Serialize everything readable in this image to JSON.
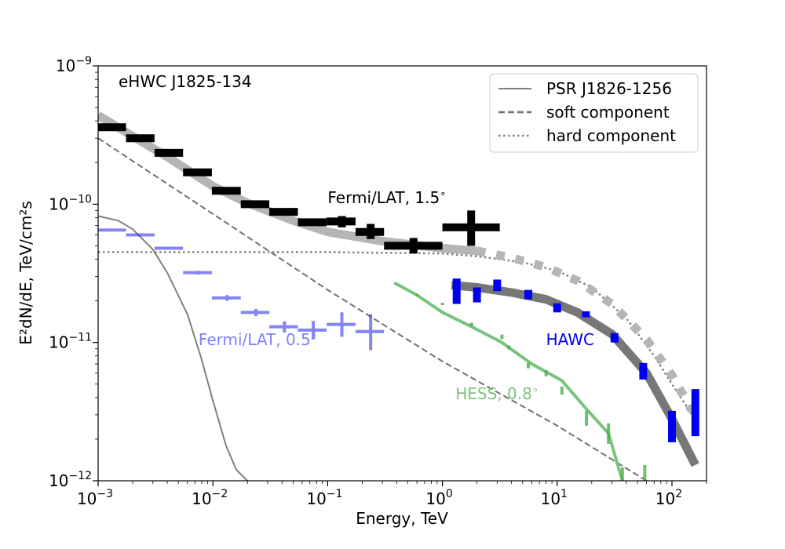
{
  "chart_data": {
    "type": "scatter",
    "title": "eHWC J1825-134",
    "xlabel": "Energy, TeV",
    "ylabel": "E²dN/dE, TeV/cm²s",
    "xscale": "log",
    "yscale": "log",
    "xlim": [
      0.001,
      200
    ],
    "ylim": [
      1e-12,
      1e-09
    ],
    "legend_position": "top-right",
    "x_ticks": [
      {
        "value": 0.001,
        "base": "10",
        "exp": "−3"
      },
      {
        "value": 0.01,
        "base": "10",
        "exp": "−2"
      },
      {
        "value": 0.1,
        "base": "10",
        "exp": "−1"
      },
      {
        "value": 1,
        "base": "10",
        "exp": "0"
      },
      {
        "value": 10,
        "base": "10",
        "exp": "1"
      },
      {
        "value": 100,
        "base": "10",
        "exp": "2"
      }
    ],
    "y_ticks": [
      {
        "value": 1e-12,
        "base": "10",
        "exp": "−12"
      },
      {
        "value": 1e-11,
        "base": "10",
        "exp": "−11"
      },
      {
        "value": 1e-10,
        "base": "10",
        "exp": "−10"
      },
      {
        "value": 1e-09,
        "base": "10",
        "exp": "−9"
      }
    ],
    "legend": [
      {
        "label": "PSR J1826-1256",
        "style": "solid",
        "color": "#808080"
      },
      {
        "label": "soft component",
        "style": "dashed",
        "color": "#707070"
      },
      {
        "label": "hard component",
        "style": "dotted",
        "color": "#808080"
      }
    ],
    "lines": [
      {
        "name": "PSR J1826-1256",
        "style": "solid",
        "color": "#808080",
        "width": 2,
        "x": [
          0.001,
          0.0015,
          0.002,
          0.003,
          0.004,
          0.006,
          0.008,
          0.01,
          0.013,
          0.016,
          0.02
        ],
        "y": [
          8.2e-11,
          7.6e-11,
          6.6e-11,
          4.7e-11,
          3.2e-11,
          1.6e-11,
          7.5e-12,
          3.8e-12,
          1.8e-12,
          1.2e-12,
          1e-12
        ]
      },
      {
        "name": "soft component",
        "style": "dashed",
        "color": "#707070",
        "width": 2,
        "x": [
          0.001,
          0.01,
          0.1,
          1,
          10,
          60
        ],
        "y": [
          3e-10,
          8.5e-11,
          2.4e-11,
          7.3e-12,
          2.5e-12,
          1e-12
        ]
      },
      {
        "name": "hard component",
        "style": "dotted",
        "color": "#808080",
        "width": 2.5,
        "x": [
          0.001,
          0.1,
          1,
          2,
          5,
          10,
          20,
          40,
          70,
          100,
          150
        ],
        "y": [
          4.5e-11,
          4.5e-11,
          4.4e-11,
          4.2e-11,
          3.8e-11,
          3.3e-11,
          2.5e-11,
          1.5e-11,
          8e-12,
          5e-12,
          3e-12
        ]
      },
      {
        "name": "Fermi/LAT 1.5° model",
        "style": "band",
        "color": "#b5b5b5",
        "width": 11,
        "x": [
          0.001,
          0.002,
          0.004,
          0.01,
          0.02,
          0.05,
          0.1,
          0.3,
          1,
          2
        ],
        "y": [
          4.4e-10,
          3.1e-10,
          2.2e-10,
          1.35e-10,
          1.02e-10,
          7.6e-11,
          6.3e-11,
          5.4e-11,
          4.8e-11,
          4.6e-11
        ]
      },
      {
        "name": "Fermi/LAT 1.5° model extrapolation",
        "style": "bigdots",
        "color": "#b5b5b5",
        "width": 11,
        "x": [
          2,
          4,
          8,
          15,
          30,
          60,
          100,
          150
        ],
        "y": [
          4.6e-11,
          4.1e-11,
          3.5e-11,
          2.8e-11,
          1.9e-11,
          1.05e-11,
          5.8e-12,
          3.2e-12
        ]
      },
      {
        "name": "HAWC model",
        "style": "solid",
        "color": "#777777",
        "width": 11,
        "x": [
          1.2,
          2,
          4,
          8,
          15,
          30,
          60,
          100,
          160
        ],
        "y": [
          2.6e-11,
          2.5e-11,
          2.3e-11,
          2.05e-11,
          1.65e-11,
          1.15e-11,
          6e-12,
          2.8e-12,
          1.3e-12
        ]
      },
      {
        "name": "HESS, 0.8°",
        "style": "solid",
        "color": "#79c47c",
        "width": 4,
        "x": [
          0.38,
          0.6,
          1,
          1.8,
          3.3,
          6,
          11,
          18,
          28,
          37
        ],
        "y": [
          2.7e-11,
          2.2e-11,
          1.65e-11,
          1.3e-11,
          1e-11,
          7e-12,
          5.3e-12,
          3.3e-12,
          2.2e-12,
          1e-12
        ]
      }
    ],
    "series": [
      {
        "name": "Fermi/LAT, 1.5°",
        "color": "#000000",
        "opacity": 1,
        "bar_width": 10,
        "points": [
          {
            "x": 0.00133,
            "y": 3.6e-10,
            "xlo": 0.001,
            "xhi": 0.00175,
            "ylo": 3.45e-10,
            "yhi": 3.75e-10
          },
          {
            "x": 0.00237,
            "y": 3e-10,
            "xlo": 0.00175,
            "xhi": 0.0031,
            "ylo": 2.88e-10,
            "yhi": 3.12e-10
          },
          {
            "x": 0.0042,
            "y": 2.35e-10,
            "xlo": 0.0031,
            "xhi": 0.0055,
            "ylo": 2.25e-10,
            "yhi": 2.45e-10
          },
          {
            "x": 0.0075,
            "y": 1.7e-10,
            "xlo": 0.0055,
            "xhi": 0.0098,
            "ylo": 1.63e-10,
            "yhi": 1.77e-10
          },
          {
            "x": 0.0133,
            "y": 1.25e-10,
            "xlo": 0.0098,
            "xhi": 0.0175,
            "ylo": 1.19e-10,
            "yhi": 1.31e-10
          },
          {
            "x": 0.0237,
            "y": 1e-10,
            "xlo": 0.0175,
            "xhi": 0.031,
            "ylo": 9.5e-11,
            "yhi": 1.05e-10
          },
          {
            "x": 0.042,
            "y": 8.8e-11,
            "xlo": 0.031,
            "xhi": 0.055,
            "ylo": 8.3e-11,
            "yhi": 9.3e-11
          },
          {
            "x": 0.075,
            "y": 7.4e-11,
            "xlo": 0.055,
            "xhi": 0.098,
            "ylo": 7e-11,
            "yhi": 7.8e-11
          },
          {
            "x": 0.133,
            "y": 7.5e-11,
            "xlo": 0.098,
            "xhi": 0.175,
            "ylo": 6.8e-11,
            "yhi": 8.2e-11
          },
          {
            "x": 0.237,
            "y": 6.3e-11,
            "xlo": 0.175,
            "xhi": 0.31,
            "ylo": 5.6e-11,
            "yhi": 7.2e-11
          },
          {
            "x": 0.56,
            "y": 5e-11,
            "xlo": 0.31,
            "xhi": 1.0,
            "ylo": 4.4e-11,
            "yhi": 5.7e-11
          },
          {
            "x": 1.78,
            "y": 6.8e-11,
            "xlo": 1.0,
            "xhi": 3.16,
            "ylo": 5e-11,
            "yhi": 9e-11
          }
        ]
      },
      {
        "name": "Fermi/LAT, 0.5°",
        "color": "#3333ee",
        "opacity": 0.6,
        "bar_width": 4,
        "points": [
          {
            "x": 0.00133,
            "y": 6.5e-11,
            "xlo": 0.001,
            "xhi": 0.00175,
            "ylo": 6.4e-11,
            "yhi": 6.6e-11
          },
          {
            "x": 0.00237,
            "y": 6e-11,
            "xlo": 0.00175,
            "xhi": 0.0031,
            "ylo": 5.9e-11,
            "yhi": 6.1e-11
          },
          {
            "x": 0.0042,
            "y": 4.8e-11,
            "xlo": 0.0031,
            "xhi": 0.0055,
            "ylo": 4.7e-11,
            "yhi": 4.9e-11
          },
          {
            "x": 0.0075,
            "y": 3.2e-11,
            "xlo": 0.0055,
            "xhi": 0.0098,
            "ylo": 3.1e-11,
            "yhi": 3.3e-11
          },
          {
            "x": 0.0133,
            "y": 2.1e-11,
            "xlo": 0.0098,
            "xhi": 0.0175,
            "ylo": 2e-11,
            "yhi": 2.2e-11
          },
          {
            "x": 0.0237,
            "y": 1.65e-11,
            "xlo": 0.0175,
            "xhi": 0.031,
            "ylo": 1.55e-11,
            "yhi": 1.75e-11
          },
          {
            "x": 0.042,
            "y": 1.3e-11,
            "xlo": 0.031,
            "xhi": 0.055,
            "ylo": 1.18e-11,
            "yhi": 1.42e-11
          },
          {
            "x": 0.075,
            "y": 1.23e-11,
            "xlo": 0.055,
            "xhi": 0.098,
            "ylo": 1.05e-11,
            "yhi": 1.43e-11
          },
          {
            "x": 0.133,
            "y": 1.35e-11,
            "xlo": 0.098,
            "xhi": 0.175,
            "ylo": 1.1e-11,
            "yhi": 1.65e-11
          },
          {
            "x": 0.237,
            "y": 1.2e-11,
            "xlo": 0.175,
            "xhi": 0.31,
            "ylo": 8.8e-12,
            "yhi": 1.6e-11
          }
        ]
      },
      {
        "name": "HAWC",
        "color": "#0000ee",
        "opacity": 1,
        "bar_width": 10,
        "points": [
          {
            "x": 1.33,
            "y": 2.35e-11,
            "ylo": 1.9e-11,
            "yhi": 2.9e-11
          },
          {
            "x": 2.0,
            "y": 2.2e-11,
            "ylo": 1.95e-11,
            "yhi": 2.5e-11
          },
          {
            "x": 3.0,
            "y": 2.6e-11,
            "ylo": 2.35e-11,
            "yhi": 2.85e-11
          },
          {
            "x": 5.6,
            "y": 2.2e-11,
            "ylo": 2.05e-11,
            "yhi": 2.4e-11
          },
          {
            "x": 10.0,
            "y": 1.78e-11,
            "ylo": 1.65e-11,
            "yhi": 1.92e-11
          },
          {
            "x": 17.8,
            "y": 1.6e-11,
            "ylo": 1.52e-11,
            "yhi": 1.68e-11
          },
          {
            "x": 31.6,
            "y": 1.08e-11,
            "ylo": 1e-11,
            "yhi": 1.17e-11
          },
          {
            "x": 56.2,
            "y": 6.2e-12,
            "ylo": 5.4e-12,
            "yhi": 7.1e-12
          },
          {
            "x": 100,
            "y": 2.5e-12,
            "ylo": 1.9e-12,
            "yhi": 3.2e-12
          },
          {
            "x": 160,
            "y": 3.1e-12,
            "ylo": 2.1e-12,
            "yhi": 4.6e-12
          }
        ]
      },
      {
        "name": "HESS, 0.8°",
        "color": "#4caf50",
        "opacity": 0.8,
        "bar_width": 4,
        "points": [
          {
            "x": 0.6,
            "y": 2.2e-11,
            "ylo": 2.16e-11,
            "yhi": 2.24e-11
          },
          {
            "x": 1.0,
            "y": 1.9e-11,
            "ylo": 1.86e-11,
            "yhi": 1.94e-11
          },
          {
            "x": 1.8,
            "y": 1.35e-11,
            "ylo": 1.31e-11,
            "yhi": 1.39e-11
          },
          {
            "x": 3.3,
            "y": 1.1e-11,
            "ylo": 1.06e-11,
            "yhi": 1.14e-11
          },
          {
            "x": 3.8,
            "y": 9.2e-12,
            "ylo": 8.9e-12,
            "yhi": 9.5e-12
          },
          {
            "x": 5.6,
            "y": 6.8e-12,
            "ylo": 6.5e-12,
            "yhi": 7.1e-12
          },
          {
            "x": 8.0,
            "y": 6e-12,
            "ylo": 5.7e-12,
            "yhi": 6.3e-12
          },
          {
            "x": 11.0,
            "y": 4.5e-12,
            "ylo": 4.2e-12,
            "yhi": 4.8e-12
          },
          {
            "x": 18.0,
            "y": 2.8e-12,
            "ylo": 2.5e-12,
            "yhi": 3.2e-12
          },
          {
            "x": 28.0,
            "y": 2.2e-12,
            "ylo": 1.85e-12,
            "yhi": 2.6e-12
          },
          {
            "x": 37.0,
            "y": 1.05e-12,
            "ylo": 1e-12,
            "yhi": 1.25e-12
          },
          {
            "x": 58.0,
            "y": 1.05e-12,
            "ylo": 1e-12,
            "yhi": 1.3e-12
          }
        ]
      }
    ],
    "annotations": [
      {
        "name": "fermi-15-label",
        "text": "Fermi/LAT, 1.5",
        "deg": "∘",
        "color": "#000000",
        "x": 0.1,
        "y": 1.02e-10
      },
      {
        "name": "fermi-05-label",
        "text": "Fermi/LAT, 0.5",
        "deg": "∘",
        "color": "#8080ff",
        "x": 0.0075,
        "y": 9.6e-12
      },
      {
        "name": "hawc-label",
        "text": "HAWC",
        "deg": "",
        "color": "#0000ee",
        "x": 8,
        "y": 9.6e-12
      },
      {
        "name": "hess-label",
        "text": "HESS, 0.8",
        "deg": "∘",
        "color": "#7cc47f",
        "x": 1.3,
        "y": 3.9e-12
      }
    ]
  }
}
